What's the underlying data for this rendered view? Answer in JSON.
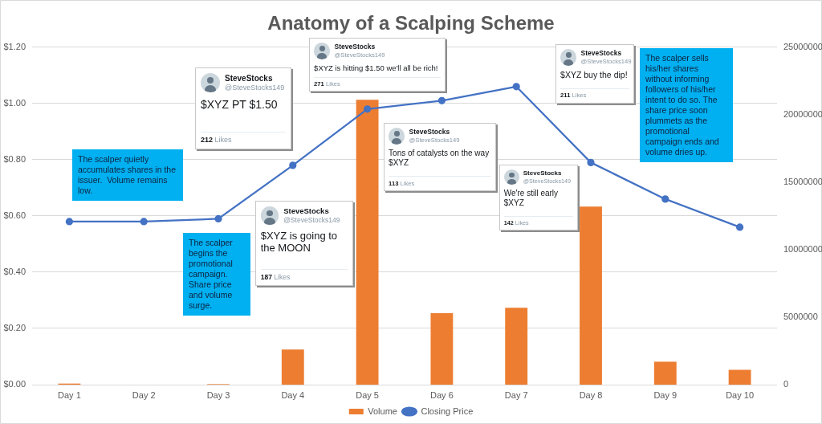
{
  "chart_data": {
    "type": "bar",
    "title": "Anatomy of a Scalping Scheme",
    "categories": [
      "Day 1",
      "Day 2",
      "Day 3",
      "Day 4",
      "Day 5",
      "Day 6",
      "Day 7",
      "Day 8",
      "Day 9",
      "Day 10"
    ],
    "series": [
      {
        "name": "Volume",
        "axis": "y2",
        "color": "#ed7d31",
        "values": [
          80000,
          0,
          40000,
          2600000,
          21100000,
          5300000,
          5700000,
          13200000,
          1700000,
          1100000
        ]
      },
      {
        "name": "Closing Price",
        "type": "line",
        "color": "#4472c4",
        "values": [
          0.58,
          0.58,
          0.59,
          0.78,
          0.98,
          1.01,
          1.06,
          0.79,
          0.66,
          0.56
        ]
      }
    ],
    "ylim": [
      0,
      1.2
    ],
    "yticks": [
      {
        "value": 0,
        "label": "$0.00"
      },
      {
        "value": 0.2,
        "label": "$0.20"
      },
      {
        "value": 0.4,
        "label": "$0.40"
      },
      {
        "value": 0.6,
        "label": "$0.60"
      },
      {
        "value": 0.8,
        "label": "$0.80"
      },
      {
        "value": 1.0,
        "label": "$1.00"
      },
      {
        "value": 1.2,
        "label": "$1.20"
      }
    ],
    "y2lim": [
      0,
      25000000
    ],
    "y2ticks": [
      0,
      5000000,
      10000000,
      15000000,
      20000000,
      25000000
    ],
    "grid": "y",
    "legend": "bottom",
    "marker": "circle",
    "line_style": "solid",
    "annotations": [
      "The scalper quietly accumulates shares in the issuer.  Volume remains low.",
      "SteveStocks",
      "@SteveStocks149",
      "$XYZ PT $1.50",
      "212 Likes",
      "The scalper begins the promotional campaign. Share price and volume surge.",
      "SteveStocks",
      "@SteveStocks149",
      "$XYZ is going to the MOON",
      "187 Likes",
      "SteveStocks",
      "@SteveStocks149",
      "$XYZ is hitting $1.50 we'll all be rich!",
      "271 Likes",
      "SteveStocks",
      "@SteveStocks149",
      "Tons of catalysts on the way $XYZ",
      "113 Likes",
      "SteveStocks",
      "@SteveStocks149",
      "We're still early $XYZ",
      "142 Likes",
      "SteveStocks",
      "@SteveStocks149",
      "$XYZ buy the dip!",
      "211 Likes",
      "The scalper sells his/her shares without informing followers of his/her intent to do so. The share price soon plummets as the promotional campaign ends and volume dries up."
    ]
  }
}
